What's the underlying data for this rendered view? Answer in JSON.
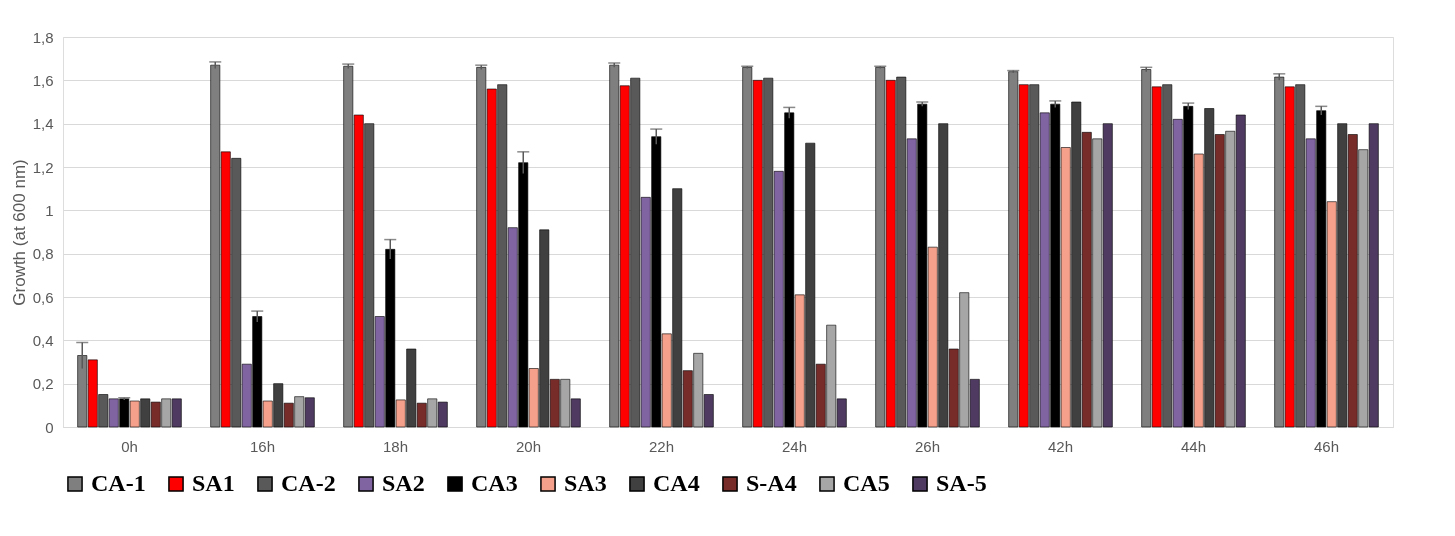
{
  "chart_data": {
    "type": "bar",
    "ylabel": "Growth (at 600 nm)",
    "categories": [
      "0h",
      "16h",
      "18h",
      "20h",
      "22h",
      "24h",
      "26h",
      "42h",
      "44h",
      "46h"
    ],
    "ylim": [
      0,
      1.8
    ],
    "yticks": [
      0,
      {
        "value": 0.2,
        "label": "0,2"
      },
      {
        "value": 0.4,
        "label": "0,4"
      },
      {
        "value": 0.6,
        "label": "0,6"
      },
      {
        "value": 0.8,
        "label": "0,8"
      },
      1,
      {
        "value": 1.2,
        "label": "1,2"
      },
      {
        "value": 1.4,
        "label": "1,4"
      },
      {
        "value": 1.6,
        "label": "1,6"
      },
      {
        "value": 1.8,
        "label": "1,8"
      }
    ],
    "grid": "y",
    "legend": "bottom",
    "series": [
      {
        "name": "CA-1",
        "color": "#7f7f7f",
        "values": [
          0.33,
          1.67,
          1.665,
          1.66,
          1.67,
          1.66,
          1.66,
          1.64,
          1.65,
          1.615
        ],
        "errors": [
          0.06,
          0.015,
          0.01,
          0.01,
          0.01,
          0.005,
          0.005,
          0.005,
          0.01,
          0.015
        ]
      },
      {
        "name": "SA1",
        "color": "#ff0000",
        "values": [
          0.31,
          1.27,
          1.44,
          1.56,
          1.575,
          1.6,
          1.6,
          1.58,
          1.57,
          1.57
        ]
      },
      {
        "name": "CA-2",
        "color": "#595959",
        "values": [
          0.15,
          1.24,
          1.4,
          1.58,
          1.61,
          1.61,
          1.615,
          1.58,
          1.58,
          1.58
        ]
      },
      {
        "name": "SA2",
        "color": "#8064a2",
        "values": [
          0.13,
          0.29,
          0.51,
          0.92,
          1.06,
          1.18,
          1.33,
          1.45,
          1.42,
          1.33
        ]
      },
      {
        "name": "CA3",
        "color": "#000000",
        "values": [
          0.13,
          0.51,
          0.82,
          1.22,
          1.34,
          1.45,
          1.49,
          1.49,
          1.48,
          1.46
        ],
        "errors": [
          0.005,
          0.025,
          0.045,
          0.05,
          0.035,
          0.025,
          0.01,
          0.015,
          0.015,
          0.02
        ]
      },
      {
        "name": "SA3",
        "color": "#f4a08a",
        "values": [
          0.12,
          0.12,
          0.125,
          0.27,
          0.43,
          0.61,
          0.83,
          1.29,
          1.26,
          1.04
        ]
      },
      {
        "name": "CA4",
        "color": "#404040",
        "values": [
          0.13,
          0.2,
          0.36,
          0.91,
          1.1,
          1.31,
          1.4,
          1.5,
          1.47,
          1.4
        ]
      },
      {
        "name": "S-A4",
        "color": "#772c2a",
        "values": [
          0.115,
          0.11,
          0.11,
          0.22,
          0.26,
          0.29,
          0.36,
          1.36,
          1.35,
          1.35
        ]
      },
      {
        "name": "CA5",
        "color": "#a6a6a6",
        "values": [
          0.13,
          0.14,
          0.13,
          0.22,
          0.34,
          0.47,
          0.62,
          1.33,
          1.365,
          1.28
        ]
      },
      {
        "name": "SA-5",
        "color": "#4f3b62",
        "values": [
          0.13,
          0.135,
          0.115,
          0.13,
          0.15,
          0.13,
          0.22,
          1.4,
          1.44,
          1.4
        ]
      }
    ]
  }
}
